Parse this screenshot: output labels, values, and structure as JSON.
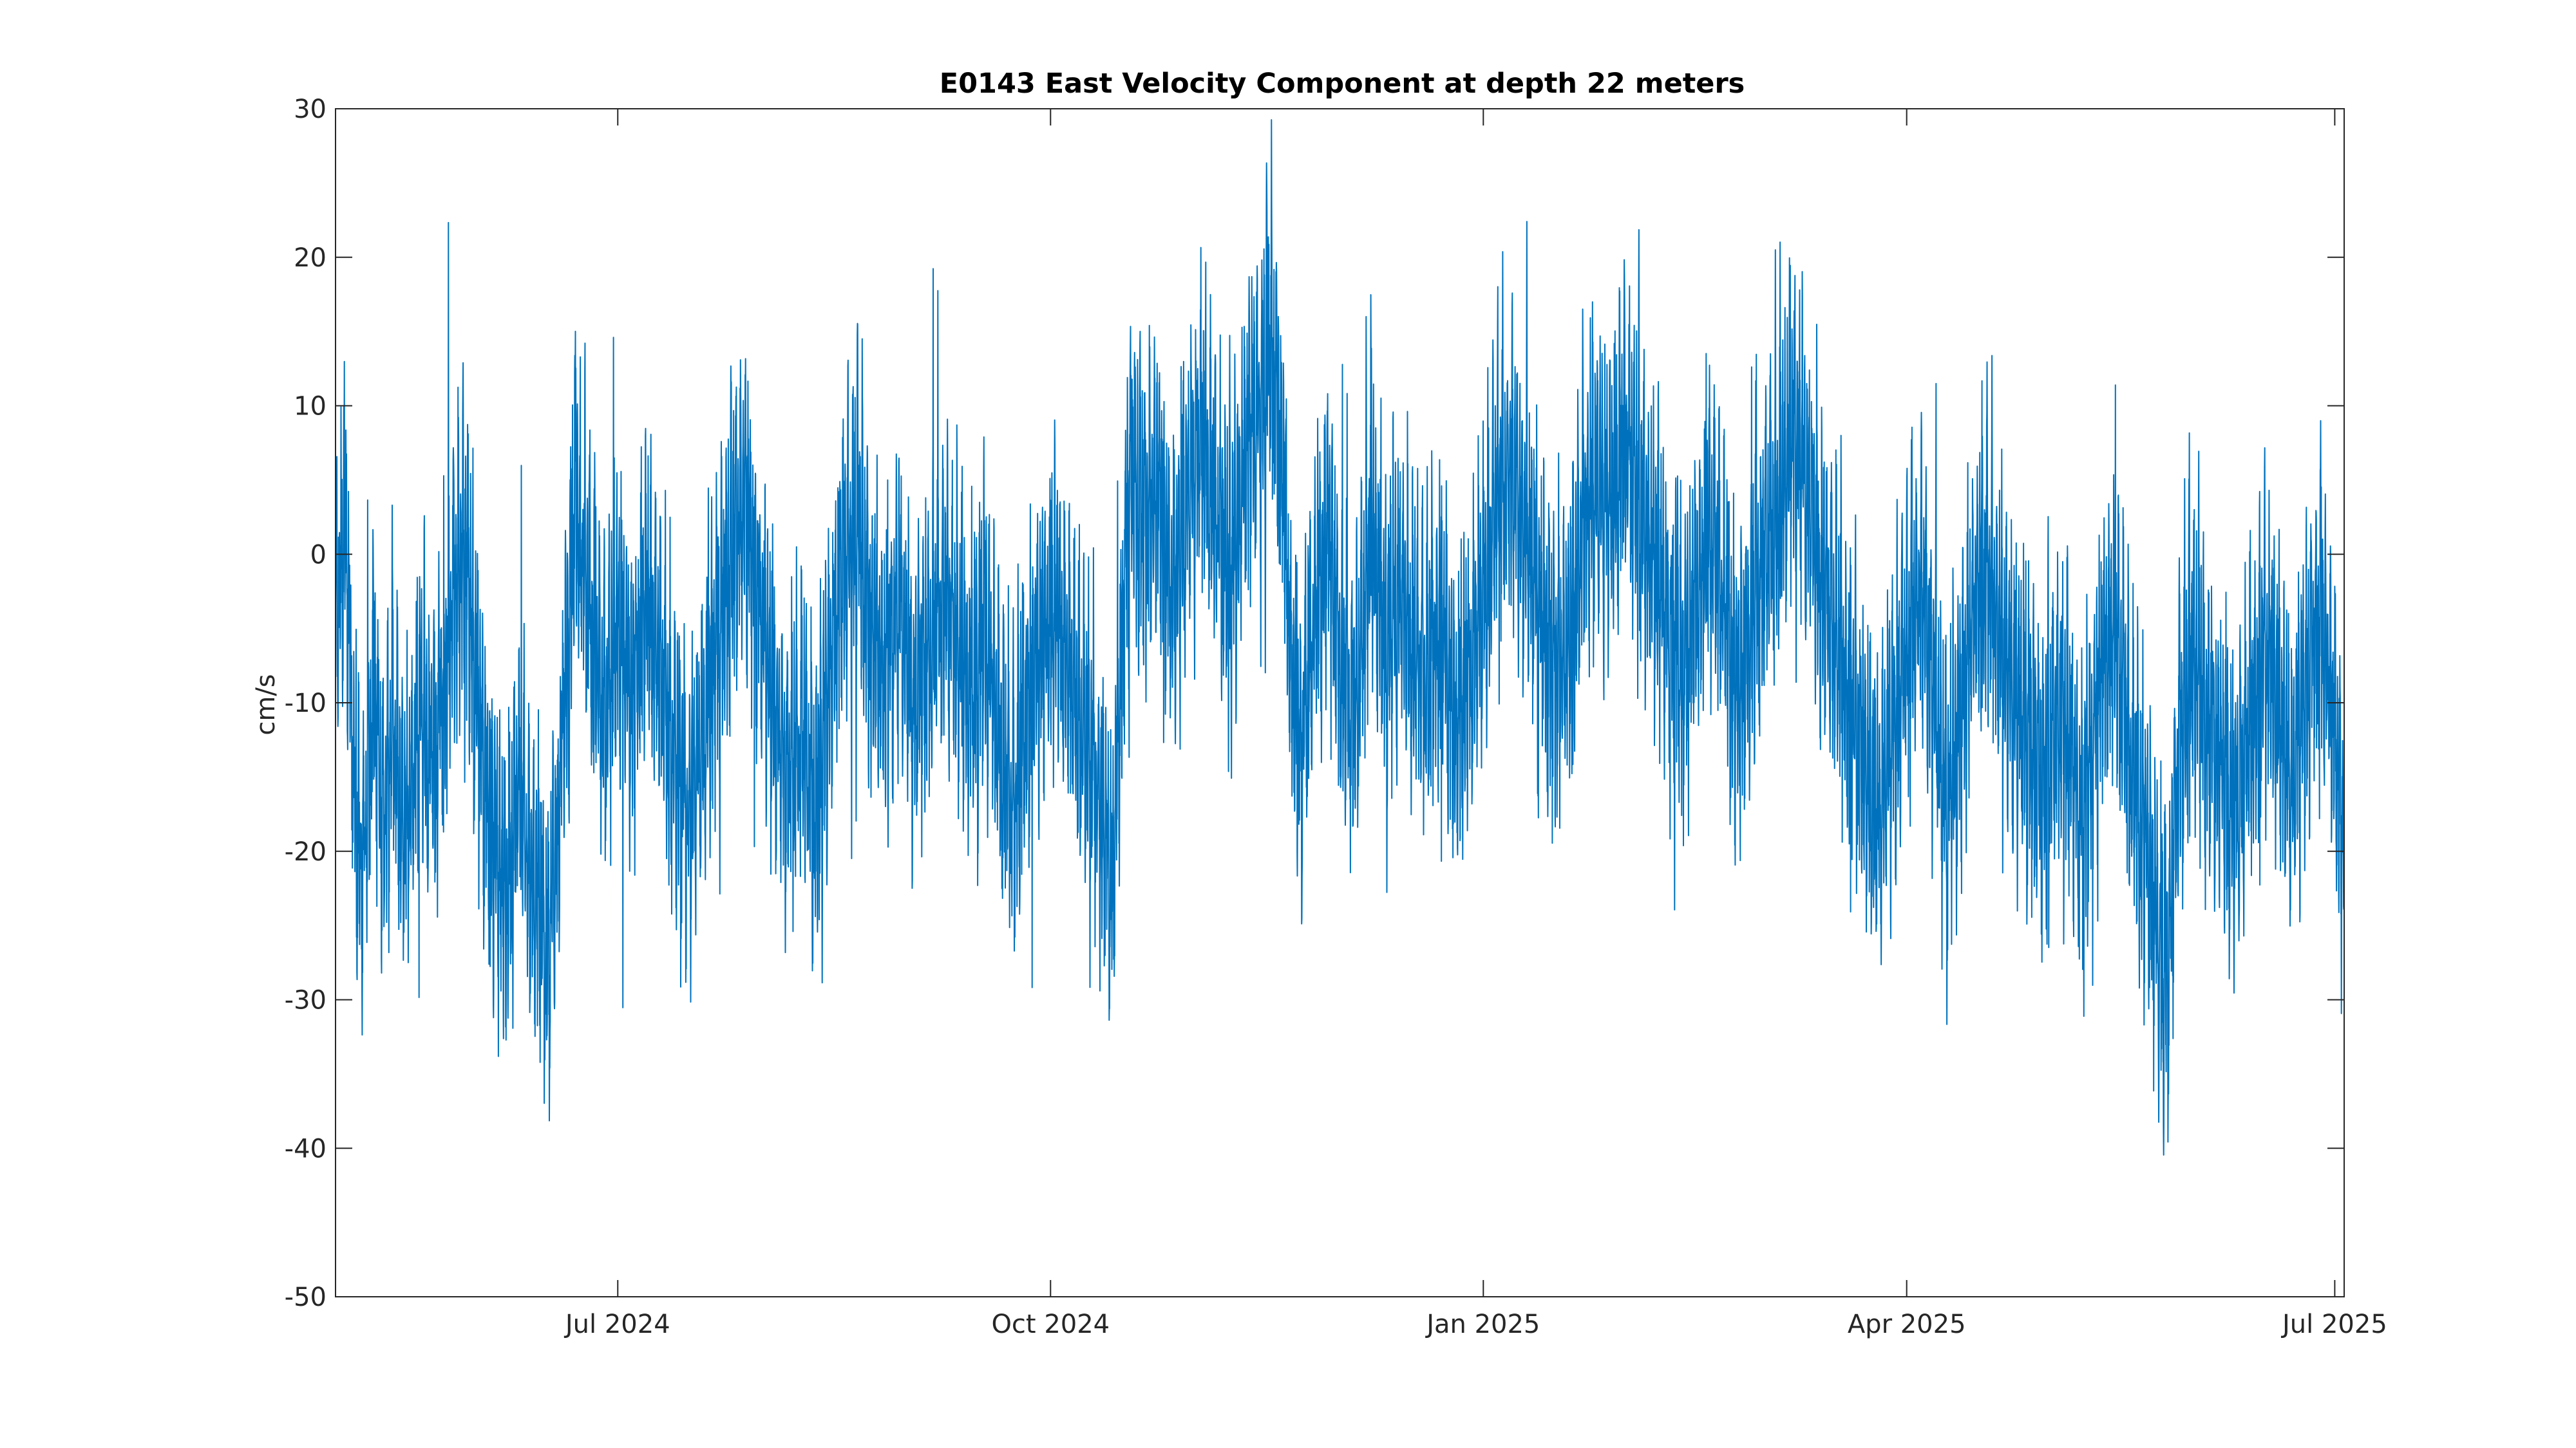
{
  "chart_data": {
    "type": "line",
    "title": "E0143 East Velocity Component at depth 22 meters",
    "xlabel": "",
    "ylabel": "cm/s",
    "xlim": [
      "2024-05-02",
      "2025-07-03"
    ],
    "ylim": [
      -50,
      30
    ],
    "grid": false,
    "legend": "none",
    "x_ticks": [
      {
        "date": "2024-07-01",
        "label": "Jul 2024"
      },
      {
        "date": "2024-10-01",
        "label": "Oct 2024"
      },
      {
        "date": "2025-01-01",
        "label": "Jan 2025"
      },
      {
        "date": "2025-04-01",
        "label": "Apr 2025"
      },
      {
        "date": "2025-07-01",
        "label": "Jul 2025"
      }
    ],
    "y_ticks": [
      {
        "value": 30,
        "label": "30"
      },
      {
        "value": 20,
        "label": "20"
      },
      {
        "value": 10,
        "label": "10"
      },
      {
        "value": 0,
        "label": "0"
      },
      {
        "value": -10,
        "label": "-10"
      },
      {
        "value": -20,
        "label": "-20"
      },
      {
        "value": -30,
        "label": "-30"
      },
      {
        "value": -40,
        "label": "-40"
      },
      {
        "value": -50,
        "label": "-50"
      }
    ],
    "series": [
      {
        "color": "#0072BD",
        "points": [
          [
            "2024-05-02",
            -5
          ],
          [
            "2024-05-04",
            3
          ],
          [
            "2024-05-06",
            -16
          ],
          [
            "2024-05-08",
            -22
          ],
          [
            "2024-05-10",
            -8
          ],
          [
            "2024-05-12",
            -18
          ],
          [
            "2024-05-14",
            -12
          ],
          [
            "2024-05-17",
            -20
          ],
          [
            "2024-05-20",
            -10
          ],
          [
            "2024-05-23",
            -14
          ],
          [
            "2024-05-26",
            -6
          ],
          [
            "2024-05-29",
            2
          ],
          [
            "2024-06-01",
            -9
          ],
          [
            "2024-06-04",
            -18
          ],
          [
            "2024-06-07",
            -24
          ],
          [
            "2024-06-10",
            -15
          ],
          [
            "2024-06-13",
            -22
          ],
          [
            "2024-06-16",
            -27
          ],
          [
            "2024-06-18",
            -20
          ],
          [
            "2024-06-20",
            -8
          ],
          [
            "2024-06-22",
            5
          ],
          [
            "2024-06-25",
            -3
          ],
          [
            "2024-06-28",
            -12
          ],
          [
            "2024-07-01",
            -4
          ],
          [
            "2024-07-04",
            -10
          ],
          [
            "2024-07-07",
            -2
          ],
          [
            "2024-07-10",
            -8
          ],
          [
            "2024-07-13",
            -14
          ],
          [
            "2024-07-16",
            -18
          ],
          [
            "2024-07-19",
            -12
          ],
          [
            "2024-07-22",
            -6
          ],
          [
            "2024-07-25",
            0
          ],
          [
            "2024-07-28",
            4
          ],
          [
            "2024-07-31",
            -3
          ],
          [
            "2024-08-03",
            -10
          ],
          [
            "2024-08-06",
            -15
          ],
          [
            "2024-08-09",
            -12
          ],
          [
            "2024-08-12",
            -18
          ],
          [
            "2024-08-15",
            -8
          ],
          [
            "2024-08-18",
            0
          ],
          [
            "2024-08-21",
            2
          ],
          [
            "2024-08-24",
            -5
          ],
          [
            "2024-08-27",
            -8
          ],
          [
            "2024-08-30",
            -3
          ],
          [
            "2024-09-02",
            -10
          ],
          [
            "2024-09-05",
            -6
          ],
          [
            "2024-09-08",
            -2
          ],
          [
            "2024-09-11",
            -5
          ],
          [
            "2024-09-14",
            -9
          ],
          [
            "2024-09-17",
            -4
          ],
          [
            "2024-09-20",
            -12
          ],
          [
            "2024-09-23",
            -18
          ],
          [
            "2024-09-26",
            -10
          ],
          [
            "2024-09-29",
            -6
          ],
          [
            "2024-10-02",
            -3
          ],
          [
            "2024-10-05",
            -8
          ],
          [
            "2024-10-08",
            -12
          ],
          [
            "2024-10-11",
            -16
          ],
          [
            "2024-10-14",
            -22
          ],
          [
            "2024-10-16",
            -8
          ],
          [
            "2024-10-18",
            6
          ],
          [
            "2024-10-21",
            2
          ],
          [
            "2024-10-24",
            5
          ],
          [
            "2024-10-27",
            -3
          ],
          [
            "2024-10-30",
            4
          ],
          [
            "2024-11-02",
            8
          ],
          [
            "2024-11-05",
            3
          ],
          [
            "2024-11-08",
            -2
          ],
          [
            "2024-11-11",
            6
          ],
          [
            "2024-11-14",
            10
          ],
          [
            "2024-11-17",
            14
          ],
          [
            "2024-11-19",
            8
          ],
          [
            "2024-11-21",
            -6
          ],
          [
            "2024-11-23",
            -14
          ],
          [
            "2024-11-26",
            -4
          ],
          [
            "2024-11-29",
            2
          ],
          [
            "2024-12-02",
            -8
          ],
          [
            "2024-12-05",
            -10
          ],
          [
            "2024-12-08",
            3
          ],
          [
            "2024-12-11",
            -5
          ],
          [
            "2024-12-14",
            -2
          ],
          [
            "2024-12-17",
            -6
          ],
          [
            "2024-12-20",
            -9
          ],
          [
            "2024-12-23",
            -4
          ],
          [
            "2024-12-26",
            -12
          ],
          [
            "2024-12-29",
            -8
          ],
          [
            "2025-01-01",
            -3
          ],
          [
            "2025-01-04",
            4
          ],
          [
            "2025-01-07",
            6
          ],
          [
            "2025-01-10",
            2
          ],
          [
            "2025-01-13",
            -4
          ],
          [
            "2025-01-16",
            -8
          ],
          [
            "2025-01-19",
            -6
          ],
          [
            "2025-01-22",
            2
          ],
          [
            "2025-01-25",
            5
          ],
          [
            "2025-01-28",
            3
          ],
          [
            "2025-01-31",
            8
          ],
          [
            "2025-02-03",
            4
          ],
          [
            "2025-02-06",
            0
          ],
          [
            "2025-02-09",
            -4
          ],
          [
            "2025-02-12",
            -8
          ],
          [
            "2025-02-15",
            -3
          ],
          [
            "2025-02-18",
            2
          ],
          [
            "2025-02-21",
            -2
          ],
          [
            "2025-02-24",
            -10
          ],
          [
            "2025-02-27",
            -4
          ],
          [
            "2025-03-02",
            1
          ],
          [
            "2025-03-05",
            4
          ],
          [
            "2025-03-08",
            10
          ],
          [
            "2025-03-11",
            5
          ],
          [
            "2025-03-14",
            -2
          ],
          [
            "2025-03-17",
            -6
          ],
          [
            "2025-03-20",
            -10
          ],
          [
            "2025-03-23",
            -14
          ],
          [
            "2025-03-26",
            -18
          ],
          [
            "2025-03-29",
            -12
          ],
          [
            "2025-04-01",
            -6
          ],
          [
            "2025-04-04",
            -2
          ],
          [
            "2025-04-07",
            -8
          ],
          [
            "2025-04-09",
            -18
          ],
          [
            "2025-04-12",
            -12
          ],
          [
            "2025-04-15",
            -4
          ],
          [
            "2025-04-18",
            0
          ],
          [
            "2025-04-21",
            -6
          ],
          [
            "2025-04-24",
            -10
          ],
          [
            "2025-04-27",
            -12
          ],
          [
            "2025-04-30",
            -16
          ],
          [
            "2025-05-03",
            -10
          ],
          [
            "2025-05-06",
            -14
          ],
          [
            "2025-05-09",
            -18
          ],
          [
            "2025-05-12",
            -8
          ],
          [
            "2025-05-15",
            -4
          ],
          [
            "2025-05-18",
            -12
          ],
          [
            "2025-05-21",
            -18
          ],
          [
            "2025-05-24",
            -24
          ],
          [
            "2025-05-26",
            -30
          ],
          [
            "2025-05-29",
            -12
          ],
          [
            "2025-06-01",
            -6
          ],
          [
            "2025-06-04",
            -10
          ],
          [
            "2025-06-07",
            -14
          ],
          [
            "2025-06-10",
            -18
          ],
          [
            "2025-06-13",
            -12
          ],
          [
            "2025-06-16",
            -6
          ],
          [
            "2025-06-19",
            -10
          ],
          [
            "2025-06-22",
            -16
          ],
          [
            "2025-06-25",
            -8
          ],
          [
            "2025-06-28",
            -4
          ],
          [
            "2025-07-01",
            -12
          ],
          [
            "2025-07-03",
            -18
          ]
        ]
      }
    ]
  }
}
